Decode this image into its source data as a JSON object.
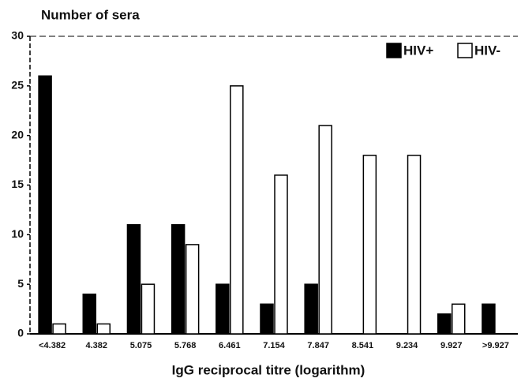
{
  "chart_data": {
    "type": "bar",
    "ylabel": "Number of sera",
    "xlabel": "IgG reciprocal titre (logarithm)",
    "categories": [
      "<4.382",
      "4.382",
      "5.075",
      "5.768",
      "6.461",
      "7.154",
      "7.847",
      "8.541",
      "9.234",
      "9.927",
      ">9.927"
    ],
    "series": [
      {
        "name": "HIV+",
        "color": "#000000",
        "values": [
          26,
          4,
          11,
          11,
          5,
          3,
          5,
          0,
          0,
          2,
          3
        ]
      },
      {
        "name": "HIV-",
        "color": "#ffffff",
        "values": [
          1,
          1,
          5,
          9,
          25,
          16,
          21,
          18,
          18,
          3,
          0
        ]
      }
    ],
    "ylim": [
      0,
      30
    ],
    "yticks": [
      0,
      5,
      10,
      15,
      20,
      25,
      30
    ],
    "legend": "top-right",
    "grid": false
  }
}
